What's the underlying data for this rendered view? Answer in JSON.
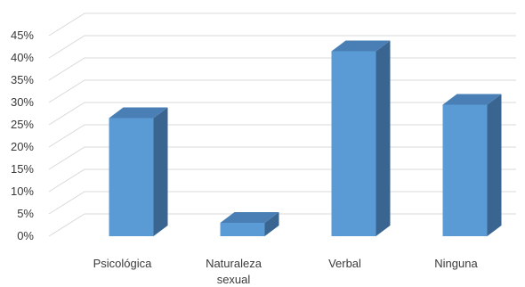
{
  "chart_data": {
    "type": "bar",
    "title": "",
    "xlabel": "",
    "ylabel": "",
    "categories": [
      "Psicológica",
      "Naturaleza sexual",
      "Verbal",
      "Ninguna"
    ],
    "category_lines": [
      [
        "Psicológica"
      ],
      [
        "Naturaleza",
        "sexual"
      ],
      [
        "Verbal"
      ],
      [
        "Ninguna"
      ]
    ],
    "values": [
      26.5,
      3.0,
      41.5,
      29.5
    ],
    "ylim": [
      0,
      45
    ],
    "yticks": [
      "0%",
      "5%",
      "10%",
      "15%",
      "20%",
      "25%",
      "30%",
      "35%",
      "40%",
      "45%"
    ],
    "grid": true,
    "style": "3d-column",
    "colors": {
      "front": "#5b9bd5",
      "top": "#4a7fb5",
      "side": "#3b6591",
      "grid": "#d9d9d9"
    }
  }
}
